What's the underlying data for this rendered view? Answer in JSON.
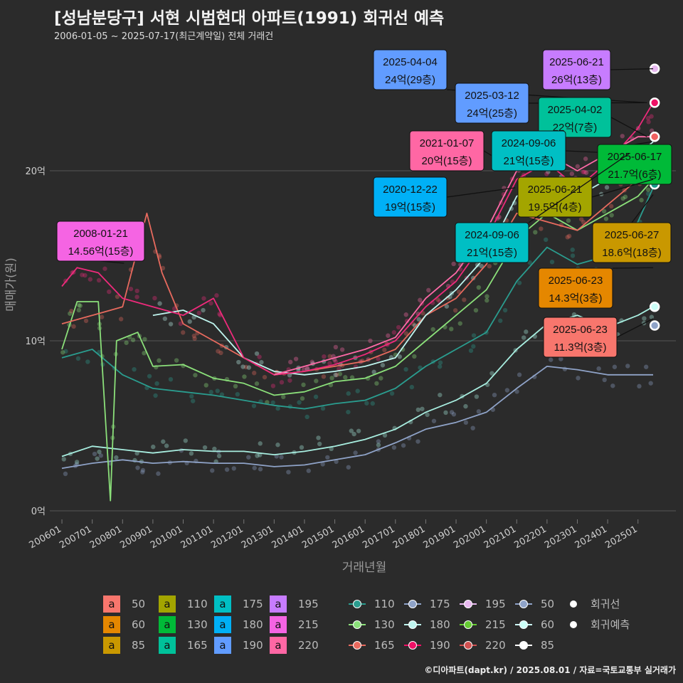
{
  "title": "[성남분당구] 서현 시범현대 아파트(1991) 회귀선 예측",
  "subtitle": "2006-01-05 ~ 2025-07-17(최근계약일) 전체 거래건",
  "source": "©디아파트(dapt.kr) / 2025.08.01 / 자료=국토교통부 실거래가",
  "colors": {
    "background": "#2b2b2b",
    "grid": "#555555",
    "t50": "#f8766d",
    "t60": "#e58700",
    "t85": "#c99800",
    "t110": "#a3a500",
    "t130": "#00ba38",
    "t165": "#00c19a",
    "t175": "#00bfc4",
    "t180": "#00b0f6",
    "t190": "#619cff",
    "t195": "#c77cff",
    "t215": "#f564e3",
    "t220": "#ff67a4"
  },
  "chart_data": {
    "type": "line",
    "xlabel": "거래년월",
    "ylabel": "매매가(원)",
    "x_ticks": [
      "200601",
      "200701",
      "200801",
      "200901",
      "201001",
      "201101",
      "201201",
      "201301",
      "201401",
      "201501",
      "201601",
      "201701",
      "201801",
      "201901",
      "202001",
      "202101",
      "202201",
      "202301",
      "202401",
      "202501"
    ],
    "y_ticks": [
      {
        "value": 0,
        "label": "0억"
      },
      {
        "value": 10,
        "label": "10억"
      },
      {
        "value": 20,
        "label": "20억"
      }
    ],
    "ylim": [
      -0.5,
      26.5
    ],
    "grid": true,
    "series": [
      {
        "name": "50",
        "color": "#8fa3c8",
        "points": [
          [
            2006.0,
            2.5
          ],
          [
            2007.0,
            2.8
          ],
          [
            2008.0,
            3.0
          ],
          [
            2009.0,
            2.8
          ],
          [
            2010.0,
            2.9
          ],
          [
            2011.0,
            2.8
          ],
          [
            2012.0,
            2.8
          ],
          [
            2013.0,
            2.6
          ],
          [
            2014.0,
            2.7
          ],
          [
            2015.0,
            3.0
          ],
          [
            2016.0,
            3.3
          ],
          [
            2017.0,
            4.0
          ],
          [
            2018.0,
            4.8
          ],
          [
            2019.0,
            5.2
          ],
          [
            2020.0,
            5.8
          ],
          [
            2021.0,
            7.2
          ],
          [
            2022.0,
            8.5
          ],
          [
            2023.0,
            8.3
          ],
          [
            2024.0,
            8.0
          ],
          [
            2025.0,
            8.0
          ],
          [
            2025.5,
            8.0
          ]
        ]
      },
      {
        "name": "60",
        "color": "#a8eee0",
        "points": [
          [
            2006.0,
            3.2
          ],
          [
            2007.0,
            3.8
          ],
          [
            2008.0,
            3.6
          ],
          [
            2009.0,
            3.4
          ],
          [
            2010.0,
            3.6
          ],
          [
            2011.0,
            3.5
          ],
          [
            2012.0,
            3.5
          ],
          [
            2013.0,
            3.3
          ],
          [
            2014.0,
            3.5
          ],
          [
            2015.0,
            3.8
          ],
          [
            2016.0,
            4.2
          ],
          [
            2017.0,
            4.8
          ],
          [
            2018.0,
            5.8
          ],
          [
            2019.0,
            6.5
          ],
          [
            2020.0,
            7.5
          ],
          [
            2021.0,
            9.5
          ],
          [
            2022.0,
            11.0
          ],
          [
            2023.0,
            11.5
          ],
          [
            2024.0,
            10.8
          ],
          [
            2025.0,
            11.5
          ],
          [
            2025.5,
            12.0
          ]
        ]
      },
      {
        "name": "110",
        "color": "#2a9d8f",
        "points": [
          [
            2006.0,
            9.0
          ],
          [
            2007.0,
            9.5
          ],
          [
            2008.0,
            8.0
          ],
          [
            2009.0,
            7.2
          ],
          [
            2010.0,
            7.0
          ],
          [
            2011.0,
            6.8
          ],
          [
            2012.0,
            6.5
          ],
          [
            2013.0,
            6.2
          ],
          [
            2014.0,
            6.0
          ],
          [
            2015.0,
            6.3
          ],
          [
            2016.0,
            6.5
          ],
          [
            2017.0,
            7.2
          ],
          [
            2018.0,
            8.5
          ],
          [
            2019.0,
            9.5
          ],
          [
            2020.0,
            10.5
          ],
          [
            2021.0,
            13.5
          ],
          [
            2022.0,
            15.5
          ],
          [
            2023.0,
            14.5
          ],
          [
            2024.0,
            15.0
          ],
          [
            2025.0,
            17.0
          ],
          [
            2025.5,
            19.0
          ]
        ]
      },
      {
        "name": "130",
        "color": "#8be07a",
        "points": [
          [
            2006.0,
            9.5
          ],
          [
            2006.5,
            12.3
          ],
          [
            2007.2,
            12.3
          ],
          [
            2007.6,
            0.6
          ],
          [
            2007.8,
            10.0
          ],
          [
            2008.5,
            10.5
          ],
          [
            2009.0,
            8.5
          ],
          [
            2010.0,
            8.6
          ],
          [
            2011.0,
            7.8
          ],
          [
            2012.0,
            7.5
          ],
          [
            2013.0,
            6.8
          ],
          [
            2014.0,
            7.0
          ],
          [
            2015.0,
            7.6
          ],
          [
            2016.0,
            7.8
          ],
          [
            2017.0,
            8.5
          ],
          [
            2018.0,
            10.0
          ],
          [
            2019.0,
            11.5
          ],
          [
            2020.0,
            13.0
          ],
          [
            2021.0,
            16.0
          ],
          [
            2022.0,
            17.5
          ],
          [
            2023.0,
            16.5
          ],
          [
            2024.0,
            17.5
          ],
          [
            2025.0,
            18.5
          ],
          [
            2025.5,
            19.5
          ]
        ]
      },
      {
        "name": "165",
        "color": "#e86a5e",
        "points": [
          [
            2006.0,
            11.0
          ],
          [
            2007.0,
            11.5
          ],
          [
            2008.0,
            12.0
          ],
          [
            2008.8,
            17.5
          ],
          [
            2009.3,
            14.0
          ],
          [
            2010.0,
            11.0
          ],
          [
            2011.0,
            10.0
          ],
          [
            2012.0,
            9.0
          ],
          [
            2013.0,
            8.0
          ],
          [
            2014.0,
            8.2
          ],
          [
            2015.0,
            8.5
          ],
          [
            2016.0,
            8.8
          ],
          [
            2017.0,
            9.5
          ],
          [
            2018.0,
            11.5
          ],
          [
            2019.0,
            12.5
          ],
          [
            2020.0,
            14.5
          ],
          [
            2021.0,
            17.5
          ],
          [
            2022.0,
            17.0
          ],
          [
            2023.0,
            16.5
          ],
          [
            2024.0,
            18.0
          ],
          [
            2025.0,
            19.5
          ],
          [
            2025.5,
            21.0
          ]
        ]
      },
      {
        "name": "180",
        "color": "#bff5ef",
        "points": [
          [
            2009.0,
            11.5
          ],
          [
            2010.0,
            11.8
          ],
          [
            2011.0,
            11.0
          ],
          [
            2012.0,
            9.0
          ],
          [
            2013.0,
            8.2
          ],
          [
            2014.0,
            8.0
          ],
          [
            2015.0,
            8.2
          ],
          [
            2016.0,
            8.5
          ],
          [
            2017.0,
            9.0
          ],
          [
            2018.0,
            11.5
          ],
          [
            2019.0,
            13.0
          ],
          [
            2020.0,
            15.0
          ],
          [
            2021.0,
            18.5
          ],
          [
            2022.0,
            19.5
          ],
          [
            2023.0,
            18.5
          ],
          [
            2024.0,
            19.5
          ],
          [
            2025.0,
            21.0
          ],
          [
            2025.5,
            21.7
          ]
        ]
      },
      {
        "name": "190",
        "color": "#ee2a7b",
        "points": [
          [
            2006.0,
            13.2
          ],
          [
            2006.5,
            14.3
          ],
          [
            2007.2,
            14.0
          ],
          [
            2008.0,
            12.5
          ],
          [
            2009.0,
            12.0
          ],
          [
            2010.0,
            11.5
          ],
          [
            2011.0,
            12.5
          ],
          [
            2012.0,
            9.0
          ],
          [
            2013.0,
            8.0
          ],
          [
            2014.0,
            8.2
          ],
          [
            2015.0,
            8.6
          ],
          [
            2016.0,
            9.2
          ],
          [
            2017.0,
            10.0
          ],
          [
            2018.0,
            12.0
          ],
          [
            2019.0,
            13.5
          ],
          [
            2020.0,
            16.0
          ],
          [
            2021.0,
            19.5
          ],
          [
            2022.0,
            20.5
          ],
          [
            2023.0,
            19.0
          ],
          [
            2024.0,
            20.5
          ],
          [
            2025.0,
            22.5
          ],
          [
            2025.5,
            24.0
          ]
        ]
      },
      {
        "name": "220",
        "color": "#ff6aa8",
        "points": [
          [
            2013.0,
            8.0
          ],
          [
            2014.0,
            8.5
          ],
          [
            2015.0,
            9.0
          ],
          [
            2016.0,
            9.5
          ],
          [
            2017.0,
            10.2
          ],
          [
            2018.0,
            12.5
          ],
          [
            2019.0,
            14.0
          ],
          [
            2020.0,
            16.5
          ],
          [
            2021.0,
            20.0
          ],
          [
            2022.0,
            21.0
          ],
          [
            2023.0,
            20.0
          ],
          [
            2024.0,
            21.0
          ],
          [
            2025.0,
            22.0
          ],
          [
            2025.5,
            22.0
          ]
        ]
      }
    ],
    "endpoints": [
      {
        "color": "#e8b8f0",
        "x": 2025.55,
        "y": 26.0
      },
      {
        "color": "#ee1166",
        "x": 2025.55,
        "y": 24.0
      },
      {
        "color": "#f06060",
        "x": 2025.55,
        "y": 22.0
      },
      {
        "color": "#1a9a8a",
        "x": 2025.55,
        "y": 19.2
      },
      {
        "color": "#ccfff8",
        "x": 2025.55,
        "y": 12.0
      },
      {
        "color": "#8fa3c8",
        "x": 2025.55,
        "y": 10.9
      }
    ],
    "annotations": [
      {
        "date": "2025-04-04",
        "value": "24억(29층)",
        "color": "#619cff",
        "tx": 2025.3,
        "ty": 24.0
      },
      {
        "date": "2025-06-21",
        "value": "26억(13층)",
        "color": "#c77cff",
        "tx": 2025.5,
        "ty": 26.0
      },
      {
        "date": "2025-03-12",
        "value": "24억(25층)",
        "color": "#619cff",
        "tx": 2025.2,
        "ty": 24.0
      },
      {
        "date": "2025-04-02",
        "value": "22억(7층)",
        "color": "#00c19a",
        "tx": 2025.3,
        "ty": 22.0
      },
      {
        "date": "2021-01-07",
        "value": "20억(15층)",
        "color": "#ff67a4",
        "tx": 2021.0,
        "ty": 20.0
      },
      {
        "date": "2024-09-06",
        "value": "21억(15층)",
        "color": "#00bfc4",
        "tx": 2024.7,
        "ty": 21.0
      },
      {
        "date": "2025-06-17",
        "value": "21.7억(6층)",
        "color": "#00ba38",
        "tx": 2025.45,
        "ty": 21.7
      },
      {
        "date": "2020-12-22",
        "value": "19억(15층)",
        "color": "#00b0f6",
        "tx": 2020.95,
        "ty": 19.0
      },
      {
        "date": "2025-06-21",
        "value": "19.5억(4층)",
        "color": "#a3a500",
        "tx": 2025.5,
        "ty": 19.5
      },
      {
        "date": "2008-01-21",
        "value": "14.56억(15층)",
        "color": "#f564e3",
        "tx": 2008.05,
        "ty": 14.56
      },
      {
        "date": "2024-09-06",
        "value": "21억(15층)",
        "color": "#00bfc4",
        "tx": 2024.7,
        "ty": 21.0
      },
      {
        "date": "2025-06-27",
        "value": "18.6억(18층)",
        "color": "#c99800",
        "tx": 2025.5,
        "ty": 18.6
      },
      {
        "date": "2025-06-23",
        "value": "14.3억(3층)",
        "color": "#e58700",
        "tx": 2025.5,
        "ty": 14.3
      },
      {
        "date": "2025-06-23",
        "value": "11.3억(3층)",
        "color": "#f8766d",
        "tx": 2025.5,
        "ty": 11.3
      }
    ]
  },
  "legend": {
    "fill": [
      {
        "glyph": "a",
        "label": "50",
        "color": "#f8766d"
      },
      {
        "glyph": "a",
        "label": "60",
        "color": "#e58700"
      },
      {
        "glyph": "a",
        "label": "85",
        "color": "#c99800"
      },
      {
        "glyph": "a",
        "label": "110",
        "color": "#a3a500"
      },
      {
        "glyph": "a",
        "label": "130",
        "color": "#00ba38"
      },
      {
        "glyph": "a",
        "label": "165",
        "color": "#00c19a"
      },
      {
        "glyph": "a",
        "label": "175",
        "color": "#00bfc4"
      },
      {
        "glyph": "a",
        "label": "180",
        "color": "#00b0f6"
      },
      {
        "glyph": "a",
        "label": "190",
        "color": "#619cff"
      },
      {
        "glyph": "a",
        "label": "195",
        "color": "#c77cff"
      },
      {
        "glyph": "a",
        "label": "215",
        "color": "#f564e3"
      },
      {
        "glyph": "a",
        "label": "220",
        "color": "#ff67a4"
      }
    ],
    "line": [
      {
        "label": "110",
        "color": "#2a9d8f"
      },
      {
        "label": "130",
        "color": "#8be07a"
      },
      {
        "label": "165",
        "color": "#e86a5e"
      },
      {
        "label": "175",
        "color": "#8fa3c8"
      },
      {
        "label": "180",
        "color": "#bff5ef"
      },
      {
        "label": "190",
        "color": "#ee1166"
      },
      {
        "label": "195",
        "color": "#e8b8f0"
      },
      {
        "label": "215",
        "color": "#66cc33"
      },
      {
        "label": "220",
        "color": "#d05050"
      },
      {
        "label": "50",
        "color": "#8fa3c8"
      },
      {
        "label": "60",
        "color": "#ccfff8"
      },
      {
        "label": "85",
        "color": "#ffffff"
      }
    ],
    "dot": [
      {
        "label": "회귀선"
      },
      {
        "label": "회귀예측"
      }
    ]
  }
}
